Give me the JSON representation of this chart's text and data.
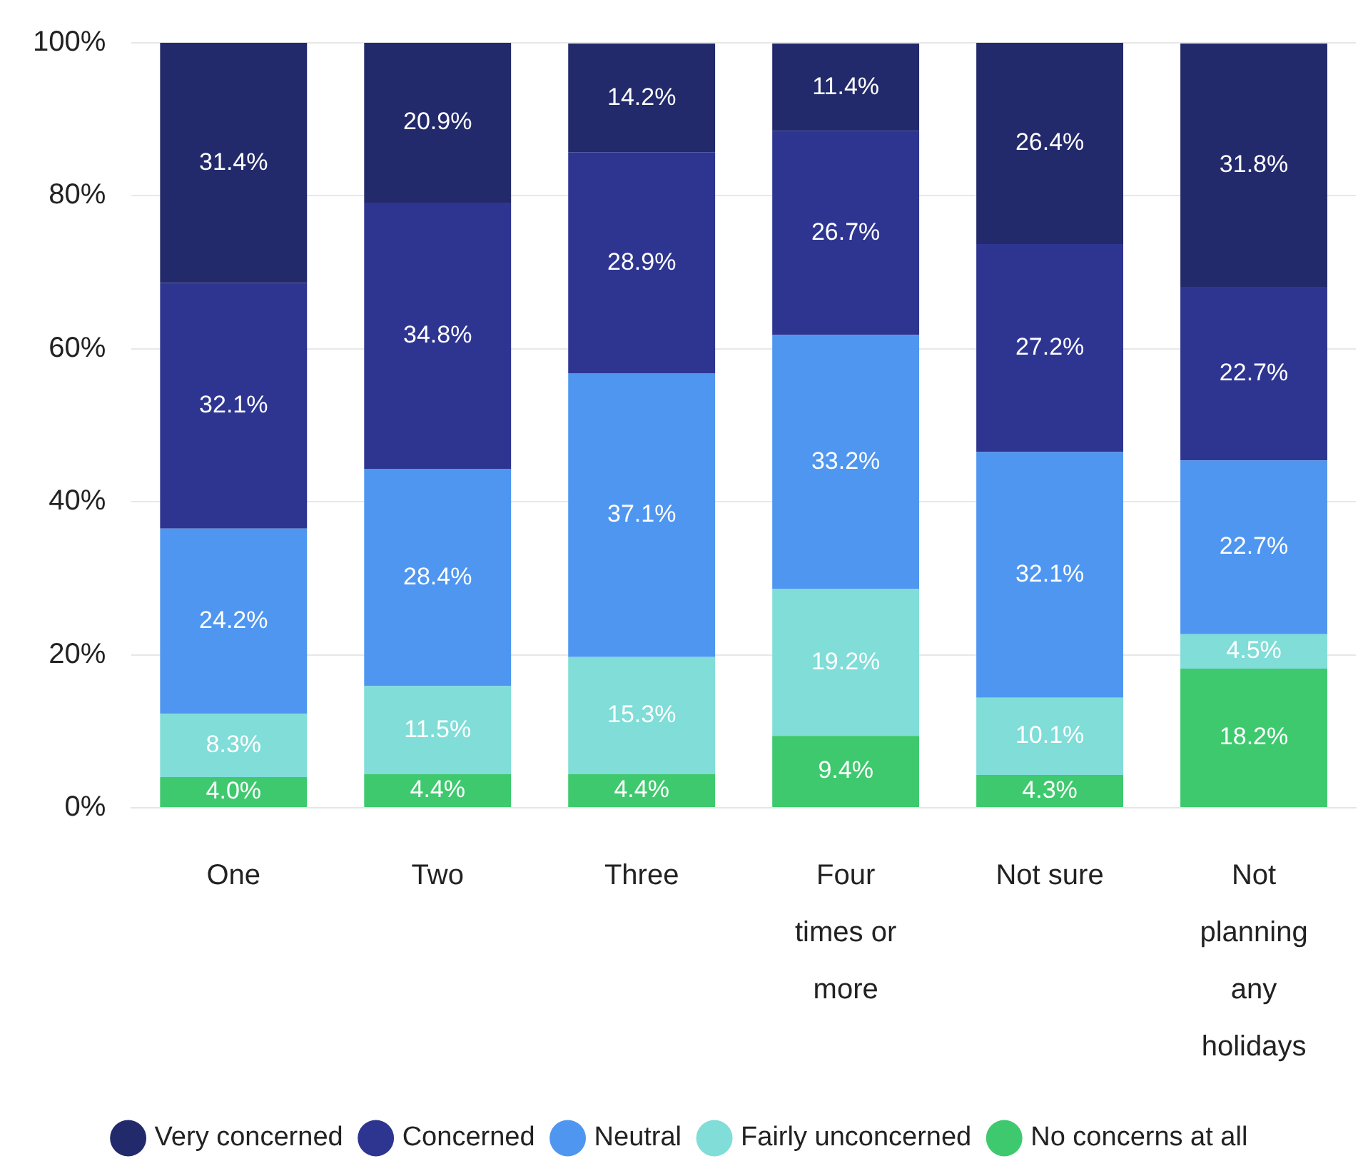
{
  "chart_data": {
    "type": "bar",
    "stacked": true,
    "categories": [
      "One",
      "Two",
      "Three",
      "Four times or more",
      "Not sure",
      "Not planning any holidays"
    ],
    "series": [
      {
        "name": "No concerns at all",
        "color": "#3ec96e",
        "values": [
          4.0,
          4.4,
          4.4,
          9.4,
          4.3,
          18.2
        ],
        "value_labels": [
          "4.0%",
          "4.4%",
          "4.4%",
          "9.4%",
          "4.3%",
          "18.2%"
        ]
      },
      {
        "name": "Fairly unconcerned",
        "color": "#80ddd8",
        "values": [
          8.3,
          11.5,
          15.3,
          19.2,
          10.1,
          4.5
        ],
        "value_labels": [
          "8.3%",
          "11.5%",
          "15.3%",
          "19.2%",
          "10.1%",
          "4.5%"
        ]
      },
      {
        "name": "Neutral",
        "color": "#4f96f0",
        "values": [
          24.2,
          28.4,
          37.1,
          33.2,
          32.1,
          22.7
        ],
        "value_labels": [
          "24.2%",
          "28.4%",
          "37.1%",
          "33.2%",
          "32.1%",
          "22.7%"
        ]
      },
      {
        "name": "Concerned",
        "color": "#2e3591",
        "values": [
          32.1,
          34.8,
          28.9,
          26.7,
          27.2,
          22.7
        ],
        "value_labels": [
          "32.1%",
          "34.8%",
          "28.9%",
          "26.7%",
          "27.2%",
          "22.7%"
        ]
      },
      {
        "name": "Very concerned",
        "color": "#232a6b",
        "values": [
          31.4,
          20.9,
          14.2,
          11.4,
          26.4,
          31.8
        ],
        "value_labels": [
          "31.4%",
          "20.9%",
          "14.2%",
          "11.4%",
          "26.4%",
          "31.8%"
        ]
      }
    ],
    "ylim": [
      0,
      100
    ],
    "yticks": [
      {
        "value": 0,
        "label": "0%"
      },
      {
        "value": 20,
        "label": "20%"
      },
      {
        "value": 40,
        "label": "40%"
      },
      {
        "value": 60,
        "label": "60%"
      },
      {
        "value": 80,
        "label": "80%"
      },
      {
        "value": 100,
        "label": "100%"
      }
    ],
    "grid": "y",
    "legend": "bottom"
  }
}
